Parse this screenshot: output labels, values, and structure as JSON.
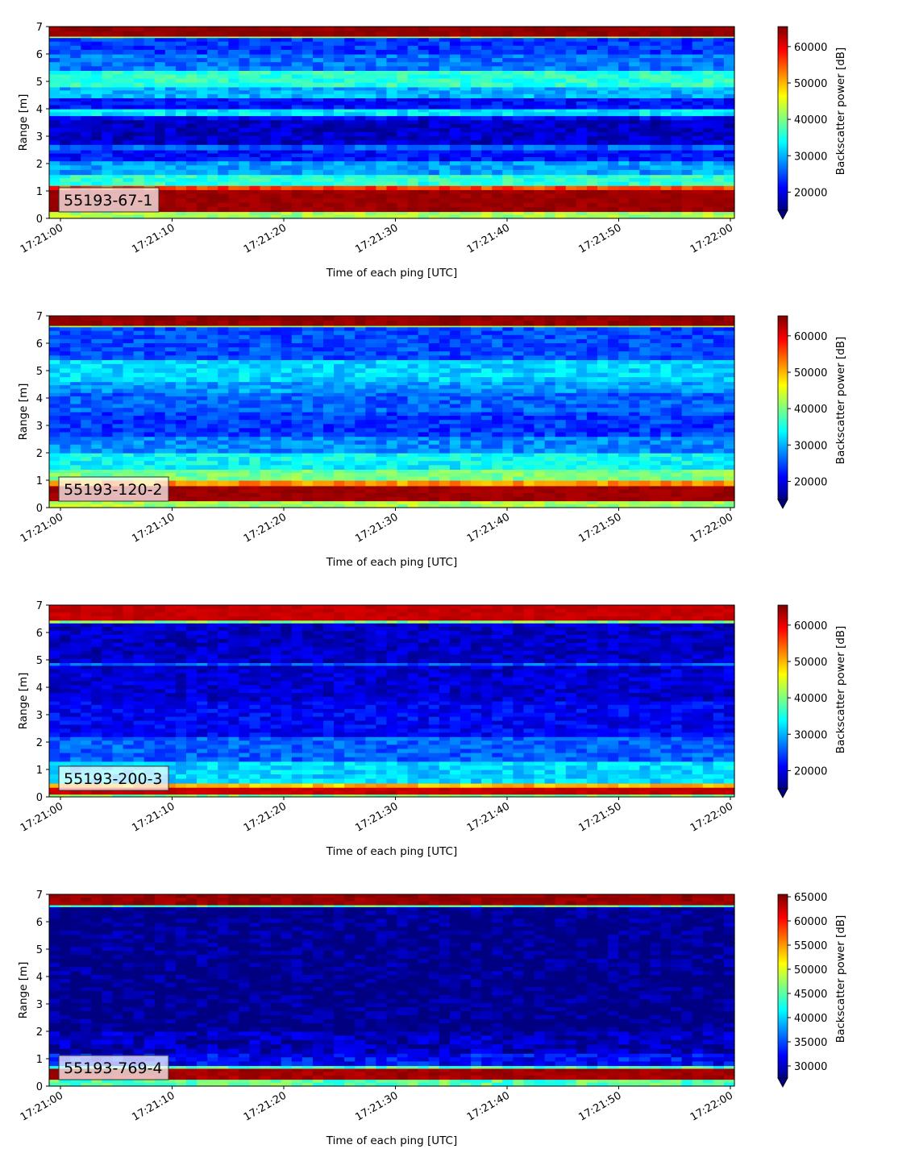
{
  "chart_data": [
    {
      "type": "heatmap",
      "label": "55193-67-1",
      "xlabel": "Time of each ping [UTC]",
      "ylabel": "Range [m]",
      "x_ticks": [
        "17:21:00",
        "17:21:10",
        "17:21:20",
        "17:21:30",
        "17:21:40",
        "17:21:50",
        "17:22:00"
      ],
      "y_ticks": [
        "0",
        "1",
        "2",
        "3",
        "4",
        "5",
        "6",
        "7"
      ],
      "ylim": [
        0,
        7
      ],
      "colorbar": {
        "label": "Backscatter power [dB]",
        "min": 15000,
        "max": 65500,
        "extend": "min",
        "ticks": [
          20000,
          30000,
          40000,
          50000,
          60000
        ],
        "tick_labels": [
          "20000",
          "30000",
          "40000",
          "50000",
          "60000"
        ]
      },
      "bands": [
        {
          "y": [
            0.0,
            0.25
          ],
          "value": 42000
        },
        {
          "y": [
            0.25,
            1.05
          ],
          "value": 64000
        },
        {
          "y": [
            1.05,
            1.2
          ],
          "value": 56000
        },
        {
          "y": [
            1.2,
            1.6
          ],
          "value": 36000
        },
        {
          "y": [
            1.6,
            2.1
          ],
          "value": 29000
        },
        {
          "y": [
            2.1,
            2.5
          ],
          "value": 22000
        },
        {
          "y": [
            2.5,
            2.7
          ],
          "value": 26000
        },
        {
          "y": [
            2.7,
            3.6
          ],
          "value": 18500
        },
        {
          "y": [
            3.6,
            3.75
          ],
          "value": 21000
        },
        {
          "y": [
            3.75,
            4.0
          ],
          "value": 33000
        },
        {
          "y": [
            4.0,
            4.4
          ],
          "value": 22000
        },
        {
          "y": [
            4.4,
            4.8
          ],
          "value": 30000
        },
        {
          "y": [
            4.8,
            5.4
          ],
          "value": 36000
        },
        {
          "y": [
            5.4,
            6.0
          ],
          "value": 27000
        },
        {
          "y": [
            6.0,
            6.6
          ],
          "value": 24000
        },
        {
          "y": [
            6.6,
            6.65
          ],
          "value": 42000
        },
        {
          "y": [
            6.65,
            7.0
          ],
          "value": 64500
        }
      ]
    },
    {
      "type": "heatmap",
      "label": "55193-120-2",
      "xlabel": "Time of each ping [UTC]",
      "ylabel": "Range [m]",
      "x_ticks": [
        "17:21:00",
        "17:21:10",
        "17:21:20",
        "17:21:30",
        "17:21:40",
        "17:21:50",
        "17:22:00"
      ],
      "y_ticks": [
        "0",
        "1",
        "2",
        "3",
        "4",
        "5",
        "6",
        "7"
      ],
      "ylim": [
        0,
        7
      ],
      "colorbar": {
        "label": "Backscatter power [dB]",
        "min": 15000,
        "max": 65500,
        "extend": "min",
        "ticks": [
          20000,
          30000,
          40000,
          50000,
          60000
        ],
        "tick_labels": [
          "20000",
          "30000",
          "40000",
          "50000",
          "60000"
        ]
      },
      "bands": [
        {
          "y": [
            0.0,
            0.25
          ],
          "value": 42000
        },
        {
          "y": [
            0.25,
            0.8
          ],
          "value": 64000
        },
        {
          "y": [
            0.8,
            1.0
          ],
          "value": 52000
        },
        {
          "y": [
            1.0,
            1.4
          ],
          "value": 40000
        },
        {
          "y": [
            1.4,
            2.0
          ],
          "value": 34000
        },
        {
          "y": [
            2.0,
            2.6
          ],
          "value": 28000
        },
        {
          "y": [
            2.6,
            3.5
          ],
          "value": 24000
        },
        {
          "y": [
            3.5,
            4.2
          ],
          "value": 26000
        },
        {
          "y": [
            4.2,
            4.6
          ],
          "value": 29000
        },
        {
          "y": [
            4.6,
            5.4
          ],
          "value": 32000
        },
        {
          "y": [
            5.4,
            6.6
          ],
          "value": 25000
        },
        {
          "y": [
            6.6,
            6.65
          ],
          "value": 42000
        },
        {
          "y": [
            6.65,
            7.0
          ],
          "value": 64500
        }
      ]
    },
    {
      "type": "heatmap",
      "label": "55193-200-3",
      "xlabel": "Time of each ping [UTC]",
      "ylabel": "Range [m]",
      "x_ticks": [
        "17:21:00",
        "17:21:10",
        "17:21:20",
        "17:21:30",
        "17:21:40",
        "17:21:50",
        "17:22:00"
      ],
      "y_ticks": [
        "0",
        "1",
        "2",
        "3",
        "4",
        "5",
        "6",
        "7"
      ],
      "ylim": [
        0,
        7
      ],
      "colorbar": {
        "label": "Backscatter power [dB]",
        "min": 15000,
        "max": 65500,
        "extend": "min",
        "ticks": [
          20000,
          30000,
          40000,
          50000,
          60000
        ],
        "tick_labels": [
          "20000",
          "30000",
          "40000",
          "50000",
          "60000"
        ]
      },
      "bands": [
        {
          "y": [
            0.0,
            0.1
          ],
          "value": 40000
        },
        {
          "y": [
            0.1,
            0.35
          ],
          "value": 62000
        },
        {
          "y": [
            0.35,
            0.5
          ],
          "value": 50000
        },
        {
          "y": [
            0.5,
            1.3
          ],
          "value": 32000
        },
        {
          "y": [
            1.3,
            2.2
          ],
          "value": 26000
        },
        {
          "y": [
            2.2,
            3.5
          ],
          "value": 21000
        },
        {
          "y": [
            3.5,
            4.8
          ],
          "value": 19000
        },
        {
          "y": [
            4.8,
            4.9
          ],
          "value": 26000
        },
        {
          "y": [
            4.9,
            6.35
          ],
          "value": 18500
        },
        {
          "y": [
            6.35,
            6.45
          ],
          "value": 40000
        },
        {
          "y": [
            6.45,
            7.0
          ],
          "value": 62000
        }
      ]
    },
    {
      "type": "heatmap",
      "label": "55193-769-4",
      "xlabel": "Time of each ping [UTC]",
      "ylabel": "Range [m]",
      "x_ticks": [
        "17:21:00",
        "17:21:10",
        "17:21:20",
        "17:21:30",
        "17:21:40",
        "17:21:50",
        "17:22:00"
      ],
      "y_ticks": [
        "0",
        "1",
        "2",
        "3",
        "4",
        "5",
        "6",
        "7"
      ],
      "ylim": [
        0,
        7
      ],
      "colorbar": {
        "label": "Backscatter power [dB]",
        "min": 27500,
        "max": 65500,
        "extend": "min",
        "ticks": [
          30000,
          35000,
          40000,
          45000,
          50000,
          55000,
          60000,
          65000
        ],
        "tick_labels": [
          "30000",
          "35000",
          "40000",
          "45000",
          "50000",
          "55000",
          "60000",
          "65000"
        ]
      },
      "bands": [
        {
          "y": [
            0.0,
            0.25
          ],
          "value": 45000
        },
        {
          "y": [
            0.25,
            0.65
          ],
          "value": 64000
        },
        {
          "y": [
            0.65,
            0.75
          ],
          "value": 44000
        },
        {
          "y": [
            0.75,
            1.2
          ],
          "value": 32500
        },
        {
          "y": [
            1.2,
            2.0
          ],
          "value": 29500
        },
        {
          "y": [
            2.0,
            6.55
          ],
          "value": 27600
        },
        {
          "y": [
            6.55,
            6.62
          ],
          "value": 45000
        },
        {
          "y": [
            6.62,
            7.0
          ],
          "value": 64500
        }
      ]
    }
  ]
}
